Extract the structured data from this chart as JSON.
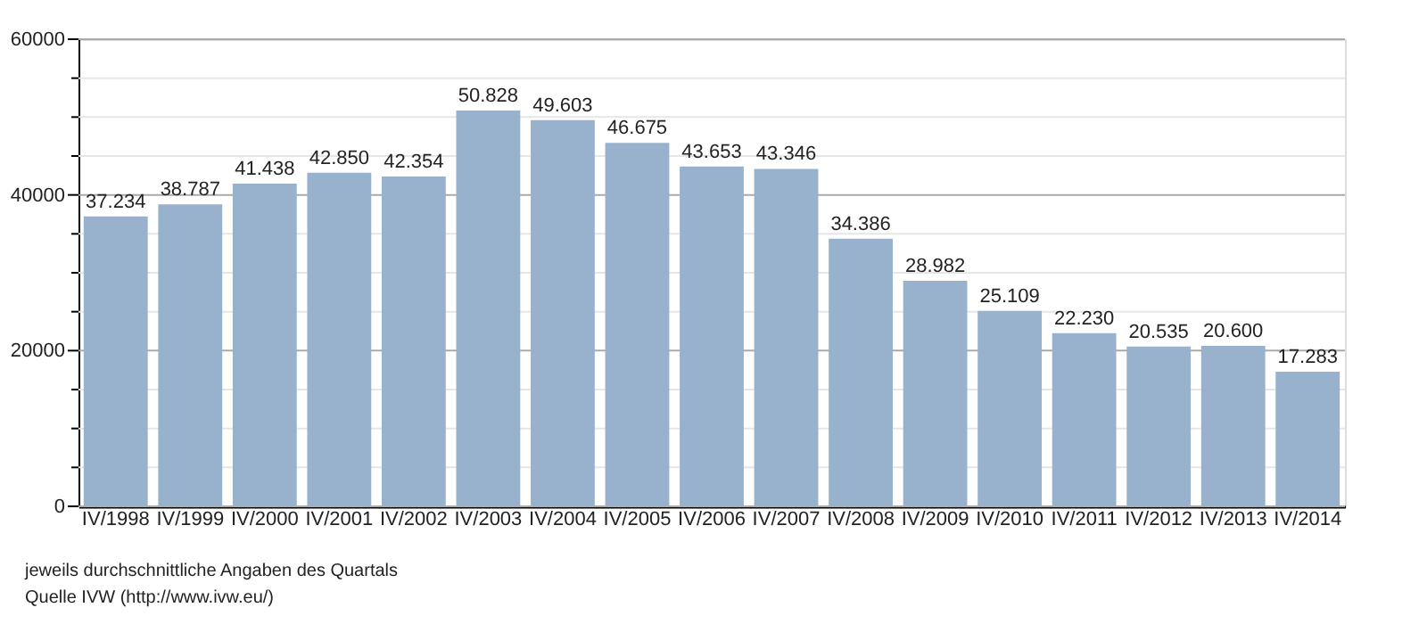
{
  "chart_data": {
    "type": "bar",
    "categories": [
      "IV/1998",
      "IV/1999",
      "IV/2000",
      "IV/2001",
      "IV/2002",
      "IV/2003",
      "IV/2004",
      "IV/2005",
      "IV/2006",
      "IV/2007",
      "IV/2008",
      "IV/2009",
      "IV/2010",
      "IV/2011",
      "IV/2012",
      "IV/2013",
      "IV/2014"
    ],
    "values": [
      37234,
      38787,
      41438,
      42850,
      42354,
      50828,
      49603,
      46675,
      43653,
      43346,
      34386,
      28982,
      25109,
      22230,
      20535,
      20600,
      17283
    ],
    "value_labels": [
      "37.234",
      "38.787",
      "41.438",
      "42.850",
      "42.354",
      "50.828",
      "49.603",
      "46.675",
      "43.653",
      "43.346",
      "34.386",
      "28.982",
      "25.109",
      "22.230",
      "20.535",
      "20.600",
      "17.283"
    ],
    "color": "#98b2cd",
    "ylim": [
      0,
      60000
    ],
    "yticks": [
      0,
      {
        "value": 5000,
        "label": null
      },
      {
        "value": 10000,
        "label": null
      },
      {
        "value": 15000,
        "label": null
      },
      20000,
      {
        "value": 25000,
        "label": null
      },
      {
        "value": 30000,
        "label": null
      },
      {
        "value": 35000,
        "label": null
      },
      40000,
      {
        "value": 45000,
        "label": null
      },
      {
        "value": 50000,
        "label": null
      },
      {
        "value": 55000,
        "label": null
      },
      60000
    ],
    "grid": true,
    "annotations": [
      "jeweils durchschnittliche Angaben des Quartals",
      "Quelle IVW (http://www.ivw.eu/)"
    ]
  }
}
